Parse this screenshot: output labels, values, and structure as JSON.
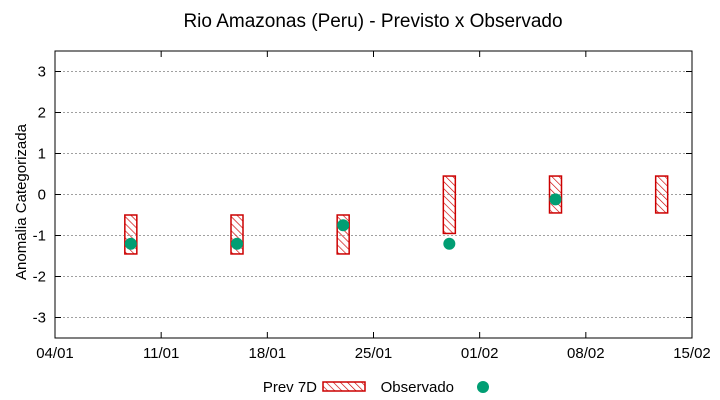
{
  "chart_data": {
    "type": "floating-bar-scatter",
    "title": "Rio Amazonas (Peru) - Previsto x Observado",
    "xlabel": "",
    "ylabel": "Anomalia Categorizada",
    "xlim": [
      0,
      42
    ],
    "ylim": [
      -3.5,
      3.5
    ],
    "x_tick_values": [
      0,
      7,
      14,
      21,
      28,
      35,
      42
    ],
    "x_tick_labels": [
      "04/01",
      "11/01",
      "18/01",
      "25/01",
      "01/02",
      "08/02",
      "15/02"
    ],
    "y_ticks": [
      -3,
      -2,
      -1,
      0,
      1,
      2,
      3
    ],
    "grid": true,
    "legend": {
      "position": "bottom",
      "forecast_label": "Prev 7D",
      "observed_label": "Observado"
    },
    "colors": {
      "forecast": "#cc0000",
      "observed": "#009e73",
      "grid": "#a0a0a0"
    },
    "forecast": [
      {
        "x": 5,
        "low": -1.45,
        "high": -0.5
      },
      {
        "x": 12,
        "low": -1.45,
        "high": -0.5
      },
      {
        "x": 19,
        "low": -1.45,
        "high": -0.5
      },
      {
        "x": 26,
        "low": -0.95,
        "high": 0.45
      },
      {
        "x": 33,
        "low": -0.45,
        "high": 0.45
      },
      {
        "x": 40,
        "low": -0.45,
        "high": 0.45
      }
    ],
    "observed": [
      {
        "x": 5,
        "y": -1.2
      },
      {
        "x": 12,
        "y": -1.2
      },
      {
        "x": 19,
        "y": -0.75
      },
      {
        "x": 26,
        "y": -1.2
      },
      {
        "x": 33,
        "y": -0.12
      }
    ]
  }
}
